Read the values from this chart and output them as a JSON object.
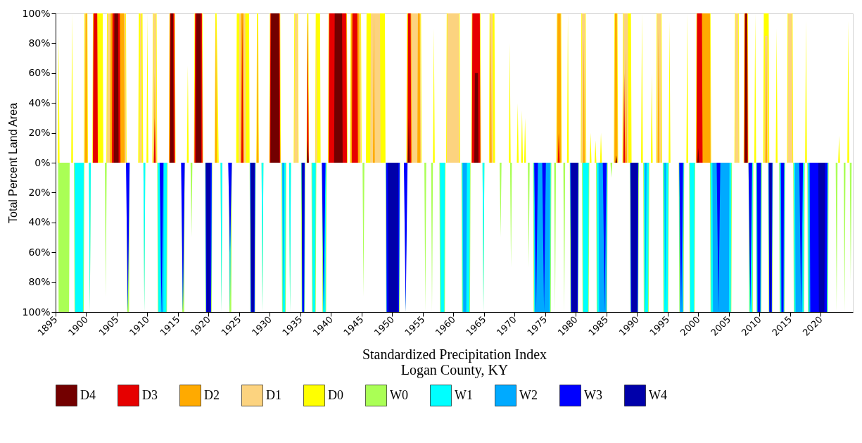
{
  "chart_data": {
    "type": "area",
    "title": "Logan County, KY",
    "xlabel": "Standardized Precipitation Index",
    "ylabel": "Total Percent Land Area",
    "xlim": [
      1895,
      2025.25
    ],
    "xticks": [
      1895,
      1900,
      1905,
      1910,
      1915,
      1920,
      1925,
      1930,
      1935,
      1940,
      1945,
      1950,
      1955,
      1960,
      1965,
      1970,
      1975,
      1980,
      1985,
      1990,
      1995,
      2000,
      2005,
      2010,
      2015,
      2020
    ],
    "ylim": [
      -100,
      100
    ],
    "yticks": [
      {
        "value": -100,
        "label": "100%"
      },
      {
        "value": -80,
        "label": "80%"
      },
      {
        "value": -60,
        "label": "60%"
      },
      {
        "value": -40,
        "label": "40%"
      },
      {
        "value": -20,
        "label": "20%"
      },
      {
        "value": 0,
        "label": "0%"
      },
      {
        "value": 20,
        "label": "20%"
      },
      {
        "value": 40,
        "label": "40%"
      },
      {
        "value": 60,
        "label": "60%"
      },
      {
        "value": 80,
        "label": "80%"
      },
      {
        "value": 100,
        "label": "100%"
      }
    ],
    "legend": "bottom",
    "series": [
      {
        "name": "D4",
        "color": "#730000",
        "x": [
          1904.5,
          1904.6,
          1905.2,
          1905.3,
          1913.7,
          1913.8,
          1914.2,
          1914.3,
          1917.9,
          1918,
          1918.7,
          1918.8,
          1930.1,
          1930.2,
          1931.5,
          1931.6,
          1936.05,
          1936.2,
          1936.35,
          1940.5,
          1940.6,
          1941.8,
          1941.9,
          1952.55,
          1952.7,
          1952.85,
          1963.4,
          1963.5,
          1964,
          1964.1,
          1986.45,
          1986.6,
          1986.75,
          1999.85,
          2000,
          2000.15,
          2007.6,
          2007.7,
          2007.9,
          2008
        ],
        "values": [
          0,
          100,
          100,
          0,
          0,
          100,
          100,
          0,
          0,
          100,
          100,
          0,
          0,
          100,
          100,
          0,
          0,
          15,
          0,
          0,
          100,
          100,
          0,
          0,
          30,
          0,
          0,
          60,
          60,
          0,
          0,
          5,
          0,
          0,
          10,
          0,
          0,
          100,
          100,
          0
        ]
      },
      {
        "name": "D3",
        "color": "#e60000",
        "x": [
          1901.1,
          1901.2,
          1901.8,
          1901.9,
          1904.2,
          1904.3,
          1905.5,
          1905.6,
          1911.05,
          1911.2,
          1911.35,
          1913.6,
          1913.7,
          1914.4,
          1914.5,
          1917.7,
          1917.8,
          1918.9,
          1919,
          1925.35,
          1925.5,
          1925.65,
          1930,
          1930.1,
          1931.6,
          1931.7,
          1936.05,
          1936.2,
          1936.35,
          1939.6,
          1939.7,
          1942.5,
          1942.6,
          1943.4,
          1943.5,
          1944.3,
          1944.4,
          1952.5,
          1952.6,
          1953,
          1953.1,
          1963,
          1963.1,
          1964.3,
          1964.4,
          1977.05,
          1977.2,
          1977.35,
          1987.75,
          1987.9,
          1988.05,
          1999.7,
          1999.8,
          2000.6,
          2000.7,
          2007.5,
          2007.6,
          2008,
          2008.1
        ],
        "values": [
          0,
          100,
          100,
          0,
          0,
          100,
          100,
          0,
          0,
          30,
          0,
          0,
          100,
          100,
          0,
          0,
          100,
          100,
          0,
          0,
          100,
          0,
          0,
          100,
          100,
          0,
          0,
          100,
          0,
          0,
          100,
          100,
          0,
          0,
          100,
          100,
          0,
          0,
          100,
          100,
          0,
          0,
          100,
          100,
          0,
          0,
          20,
          0,
          0,
          60,
          0,
          0,
          100,
          100,
          0,
          0,
          100,
          100,
          0
        ]
      },
      {
        "name": "D2",
        "color": "#ffaa00",
        "x": [
          1899.8,
          1899.9,
          1900.1,
          1900.2,
          1901.1,
          1901.2,
          1901.8,
          1901.9,
          1903.9,
          1904,
          1906.2,
          1906.3,
          1911.05,
          1911.2,
          1911.35,
          1913.6,
          1913.7,
          1914.4,
          1914.5,
          1917.7,
          1917.8,
          1918.9,
          1919,
          1921.05,
          1921.2,
          1921.35,
          1925.2,
          1925.3,
          1925.7,
          1925.8,
          1927.85,
          1928,
          1928.15,
          1930,
          1930.1,
          1931.6,
          1931.7,
          1936.05,
          1936.2,
          1936.35,
          1939.6,
          1939.7,
          1942.5,
          1942.6,
          1943.2,
          1943.3,
          1944.6,
          1944.7,
          1946.85,
          1947,
          1947.15,
          1952.4,
          1952.5,
          1953.1,
          1953.2,
          1954.1,
          1954.2,
          1954.5,
          1954.6,
          1963,
          1963.1,
          1964.3,
          1964.4,
          1965.95,
          1966.1,
          1966.25,
          1976.9,
          1977,
          1977.5,
          1977.6,
          1981.15,
          1981.3,
          1981.45,
          1986.3,
          1986.4,
          1986.7,
          1986.8,
          1988.05,
          1988.2,
          1988.35,
          1993.35,
          1993.5,
          1993.65,
          1999.7,
          1999.8,
          2001.9,
          2002,
          2007.5,
          2007.6,
          2008,
          2008.1,
          2010.95,
          2011.1,
          2011.25
        ],
        "values": [
          0,
          100,
          100,
          0,
          0,
          100,
          100,
          0,
          0,
          100,
          100,
          0,
          0,
          60,
          0,
          0,
          100,
          100,
          0,
          0,
          100,
          100,
          0,
          0,
          100,
          0,
          0,
          100,
          100,
          0,
          0,
          100,
          0,
          0,
          100,
          100,
          0,
          0,
          100,
          0,
          0,
          100,
          100,
          0,
          0,
          100,
          100,
          0,
          0,
          100,
          0,
          0,
          100,
          100,
          0,
          0,
          100,
          100,
          0,
          0,
          100,
          100,
          0,
          0,
          100,
          0,
          0,
          100,
          100,
          0,
          0,
          85,
          0,
          0,
          100,
          100,
          0,
          0,
          75,
          0,
          0,
          90,
          0,
          0,
          100,
          100,
          0,
          0,
          100,
          100,
          0,
          0,
          85,
          0
        ]
      },
      {
        "name": "D1",
        "color": "#fcd37f",
        "x": [
          1899.7,
          1899.8,
          1900.1,
          1900.2,
          1901.1,
          1901.2,
          1901.8,
          1901.9,
          1903.4,
          1903.5,
          1906.4,
          1906.5,
          1908.7,
          1908.8,
          1909,
          1909.1,
          1910.9,
          1911,
          1911.4,
          1911.5,
          1913.6,
          1913.7,
          1914.4,
          1914.5,
          1917.7,
          1917.8,
          1918.9,
          1919,
          1921.05,
          1921.2,
          1921.35,
          1924.9,
          1925,
          1926,
          1926.1,
          1927.85,
          1928,
          1928.15,
          1930,
          1930.1,
          1931.6,
          1931.7,
          1934,
          1934.1,
          1934.5,
          1934.6,
          1936.05,
          1936.2,
          1936.35,
          1937.45,
          1937.6,
          1937.75,
          1939.6,
          1939.7,
          1942.5,
          1942.6,
          1943.2,
          1943.3,
          1944.8,
          1944.9,
          1946.4,
          1946.5,
          1948,
          1948.1,
          1952.4,
          1952.5,
          1954.6,
          1954.7,
          1958.9,
          1959,
          1960.9,
          1961,
          1963,
          1963.1,
          1964.3,
          1964.4,
          1965.9,
          1966,
          1966.4,
          1966.5,
          1976.9,
          1977,
          1977.5,
          1977.6,
          1980.9,
          1981,
          1981.5,
          1981.6,
          1986.3,
          1986.4,
          1986.7,
          1986.8,
          1987.7,
          1987.8,
          1988.5,
          1988.6,
          1993.2,
          1993.3,
          1993.9,
          1994,
          1999.7,
          1999.8,
          2001.9,
          2002,
          2006,
          2006.1,
          2006.5,
          2006.6,
          2007.5,
          2007.6,
          2008,
          2008.1,
          2010.8,
          2010.9,
          2011.3,
          2011.4,
          2014.6,
          2014.7,
          2015.3,
          2015.4
        ],
        "values": [
          0,
          100,
          100,
          0,
          0,
          100,
          100,
          0,
          0,
          100,
          100,
          0,
          0,
          100,
          100,
          0,
          0,
          100,
          100,
          0,
          0,
          100,
          100,
          0,
          0,
          100,
          100,
          0,
          0,
          100,
          0,
          0,
          100,
          100,
          0,
          0,
          100,
          0,
          0,
          100,
          100,
          0,
          0,
          100,
          100,
          0,
          0,
          100,
          0,
          0,
          100,
          0,
          0,
          100,
          100,
          0,
          0,
          100,
          100,
          0,
          0,
          100,
          100,
          0,
          0,
          100,
          100,
          0,
          0,
          100,
          100,
          0,
          0,
          100,
          100,
          0,
          0,
          100,
          100,
          0,
          0,
          100,
          100,
          0,
          0,
          100,
          100,
          0,
          0,
          100,
          100,
          0,
          0,
          100,
          100,
          0,
          0,
          100,
          100,
          0,
          0,
          100,
          100,
          0,
          0,
          100,
          100,
          0,
          0,
          100,
          100,
          0,
          0,
          85,
          85,
          0,
          0,
          100,
          100,
          0
        ]
      },
      {
        "name": "D0",
        "color": "#ffff00",
        "x": [
          1895.35,
          1895.5,
          1895.65,
          1897.55,
          1897.7,
          1897.85,
          1899.6,
          1899.7,
          1900.2,
          1900.3,
          1901,
          1901.1,
          1902.7,
          1902.8,
          1903.3,
          1903.4,
          1906.5,
          1906.6,
          1908.5,
          1908.6,
          1909.2,
          1909.3,
          1909.85,
          1910,
          1910.15,
          1910.8,
          1910.9,
          1911.5,
          1911.6,
          1913.5,
          1913.6,
          1914.5,
          1914.6,
          1916.45,
          1916.6,
          1916.75,
          1917.6,
          1917.7,
          1919,
          1919.1,
          1921,
          1921.1,
          1921.3,
          1921.5,
          1921.65,
          1924.5,
          1924.6,
          1926.6,
          1926.7,
          1927.8,
          1927.9,
          1928.1,
          1928.2,
          1929.9,
          1930,
          1931.7,
          1931.8,
          1933.9,
          1934,
          1934.6,
          1934.7,
          1936,
          1936.1,
          1936.3,
          1936.4,
          1937.4,
          1937.5,
          1938.2,
          1938.3,
          1939.5,
          1939.6,
          1942.6,
          1942.7,
          1943.1,
          1943.2,
          1944.9,
          1945,
          1945.7,
          1945.8,
          1948.8,
          1948.9,
          1952.3,
          1952.4,
          1954.7,
          1954.8,
          1956.65,
          1956.8,
          1956.95,
          1958.8,
          1958.9,
          1961,
          1961.1,
          1962.9,
          1963,
          1964.4,
          1964.5,
          1965.8,
          1965.9,
          1966.7,
          1966.8,
          1969.05,
          1969.2,
          1969.35,
          1970.35,
          1970.5,
          1970.65,
          1971.05,
          1971.2,
          1971.35,
          1971.55,
          1971.7,
          1971.85,
          1976.8,
          1976.9,
          1977.6,
          1977.7,
          1978.55,
          1978.7,
          1978.85,
          1980.8,
          1980.9,
          1981.6,
          1981.7,
          1982.25,
          1982.4,
          1982.55,
          1983.05,
          1983.2,
          1983.35,
          1983.95,
          1984.1,
          1984.25,
          1986.2,
          1986.3,
          1986.8,
          1986.9,
          1987.6,
          1987.7,
          1989,
          1989.1,
          1990.65,
          1990.8,
          1990.95,
          1992.25,
          1992.4,
          1992.55,
          1993.1,
          1993.2,
          1994,
          1994.1,
          1995.15,
          1995.3,
          1995.45,
          1998.05,
          1998.2,
          1998.35,
          1999.6,
          1999.7,
          2002,
          2002.1,
          2005.9,
          2006,
          2006.6,
          2006.7,
          2007.4,
          2007.5,
          2008.1,
          2008.2,
          2009.15,
          2009.3,
          2009.45,
          2010.6,
          2010.7,
          2011.5,
          2011.6,
          2012.65,
          2012.8,
          2012.95,
          2014.5,
          2014.6,
          2015.4,
          2015.5,
          2017.45,
          2017.6,
          2017.75,
          2022.85,
          2023,
          2023.15,
          2024.35,
          2024.5,
          2024.65
        ],
        "values": [
          0,
          85,
          0,
          0,
          100,
          0,
          0,
          100,
          100,
          0,
          0,
          100,
          100,
          0,
          0,
          100,
          100,
          0,
          0,
          100,
          100,
          0,
          0,
          100,
          0,
          0,
          100,
          100,
          0,
          0,
          100,
          100,
          0,
          0,
          65,
          0,
          0,
          100,
          100,
          0,
          0,
          100,
          100,
          45,
          0,
          0,
          100,
          100,
          0,
          0,
          100,
          100,
          0,
          0,
          100,
          100,
          0,
          0,
          100,
          100,
          0,
          0,
          100,
          100,
          0,
          0,
          100,
          100,
          0,
          0,
          100,
          100,
          0,
          0,
          100,
          100,
          0,
          0,
          100,
          100,
          0,
          0,
          100,
          100,
          0,
          0,
          90,
          0,
          0,
          100,
          100,
          0,
          0,
          100,
          100,
          0,
          0,
          100,
          100,
          0,
          0,
          80,
          0,
          0,
          40,
          0,
          0,
          35,
          0,
          0,
          30,
          0,
          0,
          100,
          100,
          0,
          0,
          100,
          0,
          0,
          100,
          100,
          0,
          0,
          20,
          0,
          0,
          15,
          0,
          0,
          20,
          0,
          0,
          100,
          100,
          0,
          0,
          100,
          100,
          0,
          0,
          100,
          0,
          0,
          60,
          0,
          0,
          100,
          100,
          0,
          0,
          95,
          0,
          0,
          100,
          0,
          0,
          100,
          100,
          0,
          0,
          100,
          100,
          0,
          0,
          100,
          100,
          0,
          0,
          100,
          0,
          0,
          100,
          100,
          0,
          0,
          90,
          0,
          0,
          100,
          100,
          0,
          0,
          95,
          0,
          0,
          18,
          0,
          0,
          95,
          0
        ]
      },
      {
        "name": "W0",
        "color": "#aaff55",
        "x": [
          1895.4,
          1895.5,
          1897.2,
          1897.3,
          1898,
          1898.1,
          1899.6,
          1899.7,
          1900.45,
          1900.6,
          1900.75,
          1903.05,
          1903.2,
          1903.35,
          1906.6,
          1906.7,
          1907,
          1907.1,
          1909.35,
          1909.5,
          1909.65,
          1911.6,
          1911.7,
          1913.2,
          1913.3,
          1915.6,
          1915.7,
          1916,
          1916.1,
          1917.05,
          1917.2,
          1917.35,
          1919.4,
          1919.5,
          1920.5,
          1920.6,
          1921.95,
          1922.1,
          1922.25,
          1923.3,
          1923.4,
          1923.7,
          1923.8,
          1926.7,
          1926.8,
          1927.6,
          1927.7,
          1928.65,
          1928.8,
          1928.95,
          1931.9,
          1932,
          1932.6,
          1932.7,
          1933.15,
          1933.3,
          1933.45,
          1935.1,
          1935.2,
          1935.7,
          1935.8,
          1936.8,
          1936.9,
          1937.5,
          1937.6,
          1938.5,
          1938.6,
          1939.2,
          1939.3,
          1945.15,
          1945.3,
          1945.45,
          1948.9,
          1949,
          1951.2,
          1951.3,
          1952.05,
          1952.2,
          1952.35,
          1955.25,
          1955.4,
          1955.55,
          1956.35,
          1956.5,
          1956.65,
          1957.7,
          1957.8,
          1958.6,
          1958.7,
          1961.3,
          1961.4,
          1962.7,
          1962.8,
          1964.75,
          1964.9,
          1965.05,
          1967.55,
          1967.7,
          1967.85,
          1969.25,
          1969.4,
          1969.55,
          1972.15,
          1972.3,
          1972.45,
          1973,
          1973.1,
          1975.9,
          1976,
          1976.45,
          1976.6,
          1976.75,
          1977.95,
          1978.1,
          1978.25,
          1979,
          1979.1,
          1980.4,
          1980.5,
          1981,
          1981.1,
          1982.1,
          1982.2,
          1983.3,
          1983.4,
          1985.1,
          1985.2,
          1985.65,
          1985.8,
          1985.95,
          1988.8,
          1988.9,
          1990.2,
          1990.3,
          1991,
          1991.1,
          1991.9,
          1992,
          1994.2,
          1994.3,
          1995.1,
          1995.2,
          1996.8,
          1996.9,
          1997.6,
          1997.7,
          1998.5,
          1998.6,
          1999.4,
          1999.5,
          2001.9,
          2002,
          2005.4,
          2005.5,
          2008.2,
          2008.3,
          2008.9,
          2009,
          2009.4,
          2009.5,
          2010.3,
          2010.4,
          2011.4,
          2011.5,
          2012.1,
          2012.2,
          2013.2,
          2013.3,
          2014.1,
          2014.2,
          2015.5,
          2015.6,
          2017.3,
          2017.4,
          2017.8,
          2017.9,
          2021.2,
          2021.3,
          2022.45,
          2022.6,
          2022.75,
          2023.75,
          2023.9,
          2024.05,
          2024.75,
          2024.9,
          2025.05
        ],
        "values": [
          0,
          -100,
          -100,
          0,
          0,
          -100,
          -100,
          0,
          0,
          -100,
          0,
          0,
          -90,
          0,
          0,
          -100,
          -100,
          0,
          0,
          -100,
          0,
          0,
          -100,
          -100,
          0,
          0,
          -100,
          -100,
          0,
          0,
          -50,
          0,
          0,
          -100,
          -100,
          0,
          0,
          -100,
          0,
          0,
          -100,
          -100,
          0,
          0,
          -100,
          -100,
          0,
          0,
          -100,
          0,
          0,
          -100,
          -100,
          0,
          0,
          -100,
          0,
          0,
          -100,
          -100,
          0,
          0,
          -100,
          -100,
          0,
          0,
          -100,
          -100,
          0,
          0,
          -90,
          0,
          0,
          -100,
          -100,
          0,
          0,
          -100,
          0,
          0,
          -100,
          0,
          0,
          -100,
          0,
          0,
          -100,
          -100,
          0,
          0,
          -100,
          -100,
          0,
          0,
          -100,
          0,
          0,
          -50,
          0,
          0,
          -70,
          0,
          0,
          -70,
          0,
          0,
          -100,
          -100,
          0,
          0,
          -100,
          0,
          0,
          -100,
          0,
          0,
          -100,
          -100,
          0,
          0,
          -100,
          -100,
          0,
          0,
          -100,
          -100,
          0,
          0,
          -10,
          0,
          0,
          -100,
          -100,
          0,
          0,
          -100,
          -100,
          0,
          0,
          -100,
          -100,
          0,
          0,
          -100,
          -100,
          0,
          0,
          -100,
          -100,
          0,
          0,
          -100,
          -100,
          0,
          0,
          -100,
          -100,
          0,
          0,
          -100,
          -100,
          0,
          0,
          -100,
          -100,
          0,
          0,
          -100,
          -100,
          0,
          0,
          -100,
          -100,
          0,
          0,
          -100,
          -100,
          0,
          0,
          -100,
          0,
          0,
          -100,
          0,
          0,
          -80,
          0
        ]
      },
      {
        "name": "W1",
        "color": "#00ffff",
        "x": [
          1898.1,
          1898.2,
          1899.5,
          1899.6,
          1900.45,
          1900.6,
          1900.75,
          1906.65,
          1906.8,
          1906.95,
          1909.35,
          1909.5,
          1909.65,
          1911.7,
          1911.8,
          1913.1,
          1913.2,
          1915.65,
          1915.8,
          1915.95,
          1919.5,
          1919.6,
          1920.4,
          1920.5,
          1921.95,
          1922.1,
          1922.25,
          1923.35,
          1923.5,
          1923.65,
          1926.8,
          1926.9,
          1927.5,
          1927.6,
          1928.65,
          1928.8,
          1928.95,
          1932,
          1932.1,
          1932.5,
          1932.6,
          1933.15,
          1933.3,
          1933.45,
          1935.2,
          1935.3,
          1935.6,
          1935.7,
          1936.9,
          1937,
          1937.4,
          1937.5,
          1938.6,
          1938.7,
          1939.1,
          1939.2,
          1949,
          1949.1,
          1951.1,
          1951.2,
          1952.05,
          1952.2,
          1952.35,
          1957.8,
          1957.9,
          1958.5,
          1958.6,
          1961.4,
          1961.5,
          1962.6,
          1962.7,
          1964.75,
          1964.9,
          1965.05,
          1973.1,
          1973.2,
          1975.8,
          1975.9,
          1979.1,
          1979.2,
          1980.3,
          1980.4,
          1981.1,
          1981.2,
          1982,
          1982.1,
          1983.4,
          1983.5,
          1985,
          1985.1,
          1988.9,
          1989,
          1990.1,
          1990.2,
          1991.1,
          1991.2,
          1991.8,
          1991.9,
          1994.3,
          1994.4,
          1995,
          1995.1,
          1996.9,
          1997,
          1997.5,
          1997.6,
          1998.6,
          1998.7,
          1999.3,
          1999.4,
          2002,
          2002.1,
          2005.3,
          2005.4,
          2008.3,
          2008.4,
          2008.8,
          2008.9,
          2009.5,
          2009.6,
          2010.2,
          2010.3,
          2011.5,
          2011.6,
          2012,
          2012.1,
          2013.3,
          2013.4,
          2014,
          2014.1,
          2015.6,
          2015.7,
          2017.2,
          2017.3,
          2017.9,
          2018,
          2021.1,
          2021.2
        ],
        "values": [
          0,
          -100,
          -100,
          0,
          0,
          -100,
          0,
          0,
          -100,
          0,
          0,
          -100,
          0,
          0,
          -100,
          -100,
          0,
          0,
          -100,
          0,
          0,
          -100,
          -100,
          0,
          0,
          -100,
          0,
          0,
          -100,
          0,
          0,
          -100,
          -100,
          0,
          0,
          -100,
          0,
          0,
          -100,
          -100,
          0,
          0,
          -100,
          0,
          0,
          -100,
          -100,
          0,
          0,
          -100,
          -100,
          0,
          0,
          -100,
          -100,
          0,
          0,
          -100,
          -100,
          0,
          0,
          -100,
          0,
          0,
          -100,
          -100,
          0,
          0,
          -100,
          -100,
          0,
          0,
          -100,
          0,
          0,
          -100,
          -100,
          0,
          0,
          -100,
          -100,
          0,
          0,
          -100,
          -100,
          0,
          0,
          -100,
          -100,
          0,
          0,
          -100,
          -100,
          0,
          0,
          -100,
          -100,
          0,
          0,
          -100,
          -100,
          0,
          0,
          -100,
          -100,
          0,
          0,
          -100,
          -100,
          0,
          0,
          -100,
          -100,
          0,
          0,
          -100,
          -100,
          0,
          0,
          -100,
          -100,
          0,
          0,
          -100,
          -100,
          0,
          0,
          -100,
          -100,
          0,
          0,
          -100,
          -100,
          0,
          0,
          -100,
          -100,
          0
        ]
      },
      {
        "name": "W2",
        "color": "#00aaff",
        "x": [
          1906.65,
          1906.8,
          1906.95,
          1912.1,
          1912.2,
          1912.6,
          1912.7,
          1915.65,
          1915.8,
          1915.95,
          1919.5,
          1919.6,
          1920.4,
          1920.5,
          1923.35,
          1923.5,
          1923.65,
          1926.8,
          1926.9,
          1927.5,
          1927.6,
          1932.05,
          1932.2,
          1932.35,
          1935.2,
          1935.3,
          1935.6,
          1935.7,
          1938.65,
          1938.8,
          1938.95,
          1949,
          1949.1,
          1951.1,
          1951.2,
          1952.05,
          1952.2,
          1952.35,
          1961.5,
          1961.6,
          1962.1,
          1962.2,
          1973.2,
          1973.3,
          1975.7,
          1975.8,
          1979.1,
          1979.2,
          1980.3,
          1980.4,
          1983.7,
          1983.8,
          1985,
          1985.1,
          1988.9,
          1989,
          1990.1,
          1990.2,
          1991.25,
          1991.4,
          1991.55,
          1994.45,
          1994.6,
          1994.75,
          1996.9,
          1997,
          1997.5,
          1997.6,
          2002.3,
          2002.4,
          2005,
          2005.1,
          2008.35,
          2008.5,
          2008.65,
          2009.5,
          2009.6,
          2010.2,
          2010.3,
          2011.5,
          2011.6,
          2012,
          2012.1,
          2013.4,
          2013.5,
          2014,
          2014.1,
          2015.8,
          2015.9,
          2017,
          2017.1,
          2018,
          2018.1,
          2021,
          2021.1
        ],
        "values": [
          0,
          -100,
          0,
          0,
          -100,
          -100,
          0,
          0,
          -100,
          0,
          0,
          -100,
          -100,
          0,
          0,
          -100,
          0,
          0,
          -100,
          -100,
          0,
          0,
          -100,
          0,
          0,
          -100,
          -100,
          0,
          0,
          -100,
          0,
          0,
          -100,
          -100,
          0,
          0,
          -100,
          0,
          0,
          -100,
          -100,
          0,
          0,
          -100,
          -100,
          0,
          0,
          -100,
          -100,
          0,
          0,
          -100,
          -100,
          0,
          0,
          -100,
          -100,
          0,
          0,
          -100,
          0,
          0,
          -100,
          0,
          0,
          -100,
          -100,
          0,
          0,
          -100,
          -100,
          0,
          0,
          -100,
          0,
          0,
          -100,
          -100,
          0,
          0,
          -100,
          -100,
          0,
          0,
          -100,
          -100,
          0,
          0,
          -100,
          -100,
          0,
          0,
          -100,
          -100,
          0
        ]
      },
      {
        "name": "W3",
        "color": "#0000ff",
        "x": [
          1906.5,
          1906.8,
          1907.1,
          1912,
          1912.3,
          1912.6,
          1915.5,
          1915.8,
          1916.1,
          1919.5,
          1919.6,
          1920.4,
          1920.5,
          1923.2,
          1923.5,
          1923.8,
          1926.8,
          1926.9,
          1927.5,
          1927.6,
          1935.2,
          1935.3,
          1935.6,
          1935.7,
          1938.5,
          1938.8,
          1939.1,
          1949,
          1949.1,
          1951.1,
          1951.2,
          1951.9,
          1952.2,
          1952.5,
          1973.2,
          1973.5,
          1973.8,
          1974.5,
          1974.8,
          1975.1,
          1979.1,
          1979.2,
          1980.3,
          1980.4,
          1984.4,
          1984.7,
          1985,
          1988.9,
          1989,
          1990.1,
          1990.2,
          1996.9,
          1997.2,
          1997.5,
          2003,
          2003.3,
          2003.6,
          2008.2,
          2008.5,
          2008.8,
          2009.6,
          2009.7,
          2010.1,
          2010.2,
          2011.5,
          2011.6,
          2012,
          2012.1,
          2013.5,
          2013.6,
          2013.9,
          2014,
          2016.5,
          2016.8,
          2017.1,
          2018.2,
          2018.3,
          2021,
          2021.1
        ],
        "values": [
          0,
          -100,
          0,
          0,
          -100,
          0,
          0,
          -100,
          0,
          0,
          -100,
          -100,
          0,
          0,
          -60,
          0,
          0,
          -100,
          -100,
          0,
          0,
          -100,
          -100,
          0,
          0,
          -100,
          0,
          0,
          -100,
          -100,
          0,
          0,
          -100,
          0,
          0,
          -100,
          0,
          0,
          -100,
          0,
          0,
          -100,
          -100,
          0,
          0,
          -100,
          0,
          0,
          -100,
          -100,
          0,
          0,
          -100,
          0,
          0,
          -100,
          0,
          0,
          -100,
          0,
          0,
          -100,
          -100,
          0,
          0,
          -100,
          -100,
          0,
          0,
          -100,
          -100,
          0,
          0,
          -100,
          0,
          0,
          -100,
          -100,
          0
        ]
      },
      {
        "name": "W4",
        "color": "#0000aa",
        "x": [
          1919.6,
          1919.7,
          1920.2,
          1920.3,
          1926.9,
          1927,
          1927.4,
          1927.5,
          1935.25,
          1935.4,
          1935.55,
          1949.3,
          1949.4,
          1950.9,
          1951,
          1979.2,
          1979.3,
          1980.2,
          1980.3,
          1989,
          1989.1,
          1990,
          1990.1,
          2011.6,
          2011.7,
          2011.9,
          2012,
          2019.6,
          2019.7,
          2020.6,
          2020.7
        ],
        "values": [
          0,
          -100,
          -100,
          0,
          0,
          -100,
          -100,
          0,
          0,
          -100,
          0,
          0,
          -100,
          -100,
          0,
          0,
          -100,
          -100,
          0,
          0,
          -100,
          -100,
          0,
          0,
          -100,
          -100,
          0,
          0,
          -100,
          -100,
          0
        ]
      }
    ]
  }
}
